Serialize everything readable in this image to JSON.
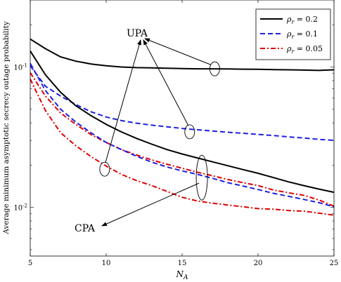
{
  "chart_data": {
    "type": "line",
    "xlabel": "N_A",
    "ylabel": "Average minimum asymptotic secrecy outage probability",
    "x": [
      5,
      6,
      7,
      8,
      9,
      10,
      11,
      12,
      13,
      14,
      15,
      16,
      17,
      18,
      19,
      20,
      21,
      22,
      23,
      24,
      25
    ],
    "xlim": [
      5,
      25
    ],
    "ylim": [
      0.0045,
      0.3
    ],
    "yscale": "log",
    "xticks": [
      "5",
      "10",
      "15",
      "20",
      "25"
    ],
    "yticks": [
      {
        "value": 0.01,
        "base": "10",
        "exp": "-2"
      },
      {
        "value": 0.1,
        "base": "10",
        "exp": "-1"
      }
    ],
    "legend": {
      "position": "top-right",
      "entries": [
        {
          "label": "ρr = 0.2",
          "color": "#000000",
          "dash": "solid"
        },
        {
          "label": "ρr = 0.1",
          "color": "#1f1fe0",
          "dash": "dashed"
        },
        {
          "label": "ρr = 0.05",
          "color": "#e00000",
          "dash": "dashdot"
        }
      ]
    },
    "series": [
      {
        "name": "ρr = 0.2",
        "group": "UPA",
        "color": "#000000",
        "dash": "solid",
        "values": [
          0.158,
          0.135,
          0.118,
          0.11,
          0.105,
          0.102,
          0.1,
          0.099,
          0.0985,
          0.098,
          0.0975,
          0.097,
          0.097,
          0.0968,
          0.0965,
          0.0963,
          0.0958,
          0.0955,
          0.095,
          0.0945,
          0.0955
        ]
      },
      {
        "name": "ρr = 0.1",
        "group": "UPA",
        "color": "#1f1fe0",
        "dash": "dashed",
        "values": [
          0.102,
          0.073,
          0.062,
          0.054,
          0.048,
          0.044,
          0.0415,
          0.0398,
          0.0385,
          0.0375,
          0.0365,
          0.0357,
          0.035,
          0.0343,
          0.0337,
          0.0331,
          0.0325,
          0.0318,
          0.0312,
          0.0305,
          0.03
        ]
      },
      {
        "name": "ρr = 0.05",
        "group": "UPA",
        "color": "#e00000",
        "dash": "dashdot",
        "values": [
          0.091,
          0.062,
          0.047,
          0.039,
          0.033,
          0.029,
          0.0258,
          0.0236,
          0.0218,
          0.0203,
          0.019,
          0.0178,
          0.0168,
          0.0158,
          0.015,
          0.0143,
          0.0133,
          0.0127,
          0.0122,
          0.0113,
          0.0102
        ]
      },
      {
        "name": "ρr = 0.2",
        "group": "CPA",
        "color": "#000000",
        "dash": "solid",
        "values": [
          0.13,
          0.088,
          0.066,
          0.053,
          0.045,
          0.039,
          0.0345,
          0.031,
          0.0282,
          0.0258,
          0.024,
          0.0225,
          0.0211,
          0.0198,
          0.0186,
          0.0175,
          0.0163,
          0.0152,
          0.0143,
          0.0135,
          0.0128
        ]
      },
      {
        "name": "ρr = 0.1",
        "group": "CPA",
        "color": "#1f1fe0",
        "dash": "dashed",
        "values": [
          0.106,
          0.068,
          0.05,
          0.0405,
          0.034,
          0.029,
          0.0258,
          0.0231,
          0.021,
          0.0194,
          0.0182,
          0.0172,
          0.0161,
          0.015,
          0.0142,
          0.0134,
          0.0126,
          0.012,
          0.0114,
          0.0108,
          0.0101
        ]
      },
      {
        "name": "ρr = 0.05",
        "group": "CPA",
        "color": "#e00000",
        "dash": "dashdot",
        "values": [
          0.082,
          0.049,
          0.034,
          0.0275,
          0.023,
          0.0197,
          0.0172,
          0.0155,
          0.0143,
          0.013,
          0.0118,
          0.0111,
          0.0107,
          0.0104,
          0.0101,
          0.0098,
          0.0097,
          0.0095,
          0.0094,
          0.0091,
          0.0088
        ]
      }
    ],
    "annotations": [
      {
        "text": "UPA"
      },
      {
        "text": "CPA"
      }
    ]
  }
}
